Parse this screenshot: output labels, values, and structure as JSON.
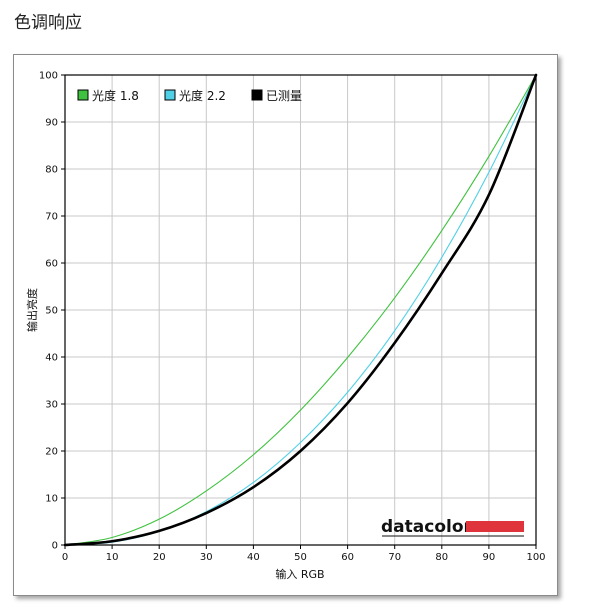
{
  "page": {
    "title": "色调响应"
  },
  "chart_data": {
    "type": "line",
    "title": "",
    "xlabel": "输入 RGB",
    "ylabel": "输出亮度",
    "xlim": [
      0,
      100
    ],
    "ylim": [
      0,
      100
    ],
    "x_ticks": [
      "0",
      "10",
      "20",
      "30",
      "40",
      "50",
      "60",
      "70",
      "80",
      "90",
      "100"
    ],
    "y_ticks": [
      "0",
      "10",
      "20",
      "30",
      "40",
      "50",
      "60",
      "70",
      "80",
      "90",
      "100"
    ],
    "grid": true,
    "legend_position": "top-left",
    "x": [
      0,
      10,
      20,
      30,
      40,
      50,
      60,
      70,
      80,
      90,
      100
    ],
    "series": [
      {
        "name": "光度 1.8",
        "color": "#3fc23f",
        "values": [
          0,
          1.6,
          5.5,
          11.5,
          19.2,
          28.7,
          39.9,
          52.6,
          66.9,
          82.7,
          100
        ]
      },
      {
        "name": "光度 2.2",
        "color": "#4fd0e6",
        "values": [
          0,
          0.6,
          2.9,
          7.1,
          13.3,
          21.8,
          32.5,
          45.6,
          61.2,
          79.3,
          100
        ]
      },
      {
        "name": "已测量",
        "color": "#000000",
        "values": [
          0,
          0.8,
          3.0,
          6.8,
          12.3,
          20.0,
          30.2,
          43.0,
          57.8,
          74.5,
          100
        ]
      }
    ],
    "brand": {
      "text": "datacolor",
      "accent_color": "#e0343c"
    }
  }
}
